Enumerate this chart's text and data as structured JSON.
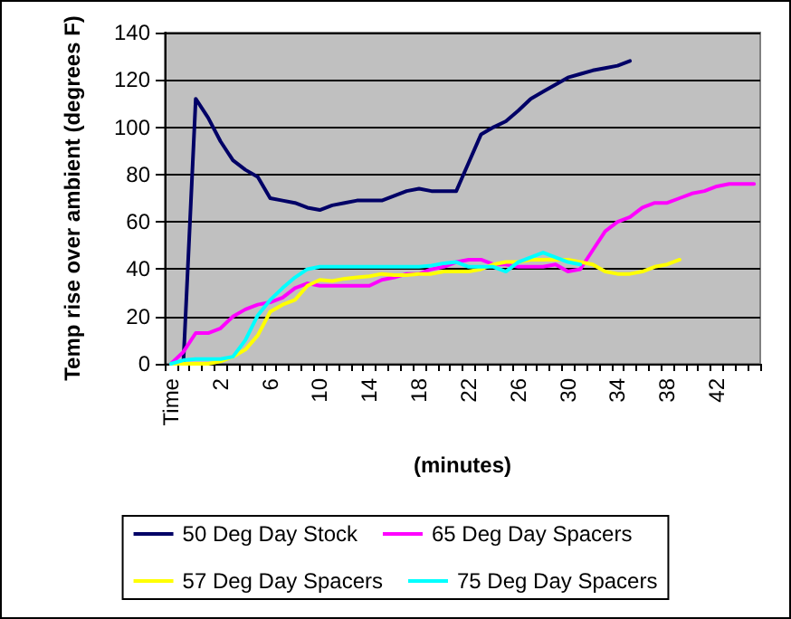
{
  "chart_data": {
    "type": "line",
    "xlabel": "(minutes)",
    "ylabel": "Temp rise over ambient (degrees F)",
    "categories": [
      "Time",
      null,
      null,
      null,
      "2",
      null,
      null,
      null,
      "6",
      null,
      null,
      null,
      "10",
      null,
      null,
      null,
      "14",
      null,
      null,
      null,
      "18",
      null,
      null,
      null,
      "22",
      null,
      null,
      null,
      "26",
      null,
      null,
      null,
      "30",
      null,
      null,
      null,
      "34",
      null,
      null,
      null,
      "38",
      null,
      null,
      null,
      "42",
      null,
      null,
      null
    ],
    "ylim": [
      0,
      140
    ],
    "yticks": [
      0,
      20,
      40,
      60,
      80,
      100,
      120,
      140
    ],
    "grid": "y",
    "legend": "bottom",
    "marker": "none",
    "line_style": "solid",
    "series": [
      {
        "name": "50 Deg Day Stock",
        "color": "#000066",
        "values": [
          null,
          0,
          112,
          104,
          94,
          86,
          82,
          79,
          70,
          69,
          68,
          66,
          65,
          67,
          68,
          69,
          69,
          69,
          71,
          73,
          74,
          73,
          73,
          73,
          85,
          97,
          100,
          102.5,
          107,
          112,
          115,
          118,
          121,
          122.5,
          124,
          125,
          126,
          128,
          null,
          null,
          null,
          null,
          null,
          null,
          null,
          null,
          null,
          null
        ]
      },
      {
        "name": "65 Deg Day Spacers",
        "color": "#ff00ff",
        "values": [
          0,
          5,
          13,
          13,
          15,
          20,
          23,
          25,
          26,
          28,
          32,
          34,
          33,
          33,
          33,
          33,
          33,
          35.5,
          36.5,
          38,
          38,
          40,
          41,
          43,
          44,
          44,
          42,
          42,
          41,
          41,
          41,
          42,
          39,
          40,
          48,
          56,
          60,
          62,
          66,
          68,
          68,
          70,
          72,
          73,
          75,
          76,
          76,
          76
        ]
      },
      {
        "name": "57 Deg Day Spacers",
        "color": "#ffff00",
        "values": [
          0,
          0,
          0,
          0,
          1,
          3,
          6,
          12,
          22,
          25,
          27,
          33,
          35.5,
          35,
          36,
          36.5,
          37,
          38,
          37.5,
          37.5,
          38,
          38,
          39,
          39,
          39,
          40,
          42,
          43,
          43,
          44,
          44,
          44,
          44,
          43,
          42,
          39,
          38,
          38,
          39,
          41,
          42,
          44,
          null,
          null,
          null,
          null,
          null,
          null
        ]
      },
      {
        "name": "75 Deg Day Spacers",
        "color": "#00ffff",
        "values": [
          0,
          1.5,
          2,
          2,
          2,
          3,
          10,
          20.5,
          27,
          32,
          36.5,
          40,
          41,
          41,
          41,
          41,
          41,
          41,
          41,
          41,
          41,
          41.5,
          42.5,
          43,
          41,
          41,
          41,
          39,
          43,
          45,
          47,
          45,
          43,
          42,
          null,
          null,
          null,
          null,
          null,
          null,
          null,
          null,
          null,
          null,
          null,
          null,
          null,
          null
        ]
      }
    ]
  }
}
